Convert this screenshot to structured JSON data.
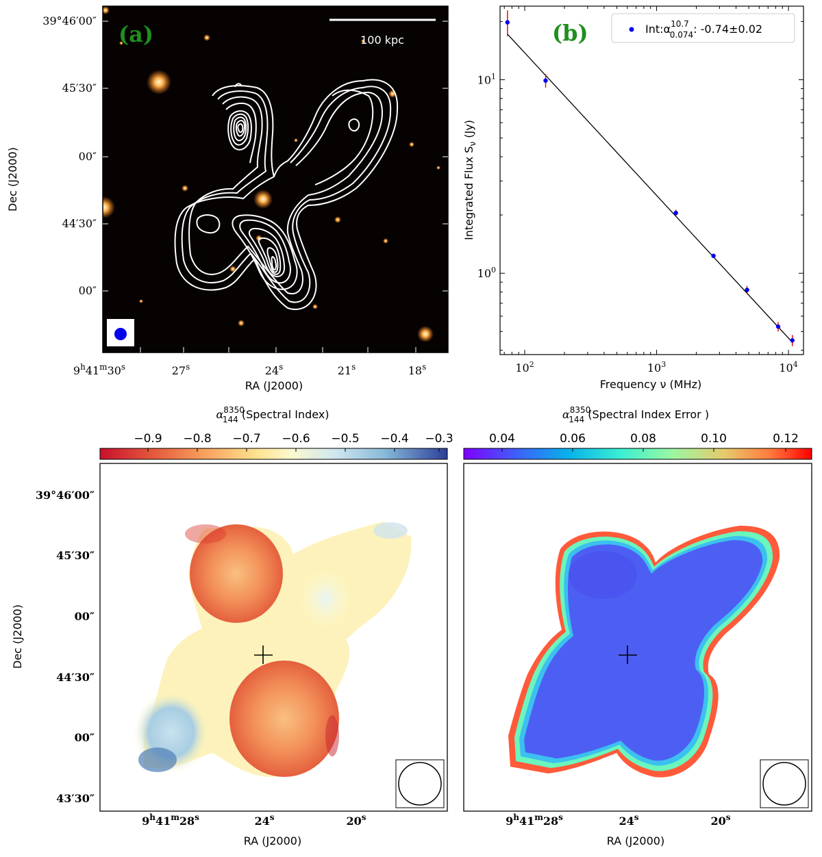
{
  "panels": {
    "a": {
      "panel_label": "(a)",
      "scalebar_label": "100 kpc",
      "ra_ticks": [
        {
          "h": "9",
          "m": "41",
          "s": "30"
        },
        {
          "s": "27"
        },
        {
          "s": "24"
        },
        {
          "s": "21"
        },
        {
          "s": "18"
        }
      ],
      "dec_ticks": [
        {
          "d": "39",
          "m": "46",
          "s": "00"
        },
        {
          "m": "45",
          "s": "30"
        },
        {
          "s": "00"
        },
        {
          "m": "44",
          "s": "30"
        },
        {
          "s": "00"
        }
      ],
      "xlabel": "RA (J2000)",
      "ylabel": "Dec (J2000)"
    },
    "b": {
      "panel_label": "(b)",
      "legend_label": "Int:α",
      "legend_sup": "10.7",
      "legend_sub": "0.074",
      "legend_value": ": -0.74±0.02",
      "xlabel": "Frequency ν (MHz)",
      "ylabel": "Integrated Flux S",
      "ylabel_sub": "ν",
      "ylabel_unit": " (Jy)",
      "xtick_labels": [
        "10",
        "10",
        "10"
      ],
      "xtick_exps": [
        "2",
        "3",
        "4"
      ],
      "ytick_labels": [
        "10",
        "10"
      ],
      "ytick_exps": [
        "1",
        "0"
      ]
    },
    "c": {
      "cbar_title_sym": "α",
      "cbar_sup": "8350",
      "cbar_sub": "144",
      "cbar_title": " (Spectral Index)",
      "cbar_ticks": [
        "−0.9",
        "−0.8",
        "−0.7",
        "−0.6",
        "−0.5",
        "−0.4",
        "−0.3"
      ],
      "ra_ticks": [
        {
          "h": "9",
          "m": "41",
          "s": "28"
        },
        {
          "s": "24"
        },
        {
          "s": "20"
        }
      ],
      "dec_ticks": [
        {
          "d": "39",
          "m": "46",
          "s": "00"
        },
        {
          "m": "45",
          "s": "30"
        },
        {
          "s": "00"
        },
        {
          "m": "44",
          "s": "30"
        },
        {
          "s": "00"
        },
        {
          "m": "43",
          "s": "30"
        }
      ],
      "xlabel": "RA (J2000)",
      "ylabel": "Dec (J2000)"
    },
    "d": {
      "cbar_title_sym": "α",
      "cbar_sup": "8350",
      "cbar_sub": "144",
      "cbar_title": " (Spectral Index Error )",
      "cbar_ticks": [
        "0.04",
        "0.06",
        "0.08",
        "0.10",
        "0.12"
      ],
      "ra_ticks": [
        {
          "h": "9",
          "m": "41",
          "s": "28"
        },
        {
          "s": "24"
        },
        {
          "s": "20"
        }
      ],
      "xlabel": "RA (J2000)"
    }
  },
  "chart_data": [
    {
      "type": "scatter",
      "panel": "b",
      "x_scale": "log",
      "y_scale": "log",
      "xlim": [
        65,
        13000
      ],
      "ylim": [
        0.38,
        24
      ],
      "series": [
        {
          "name": "Int:α 0.074–10.7: -0.74±0.02",
          "x": [
            74,
            144,
            1400,
            2700,
            4850,
            8350,
            10700
          ],
          "y": [
            19.8,
            9.9,
            2.05,
            1.23,
            0.82,
            0.53,
            0.45
          ],
          "yerr": [
            3.0,
            0.8,
            0.08,
            0.03,
            0.04,
            0.03,
            0.03
          ]
        }
      ],
      "fit": {
        "alpha": -0.74,
        "alpha_err": 0.02,
        "x": [
          74,
          10700
        ],
        "y": [
          17.2,
          0.44
        ]
      },
      "marker_color": "#0000ee",
      "errorbar_color": "#dd0000",
      "legend_position": "top-right"
    },
    {
      "type": "heatmap",
      "panel": "c",
      "colormap": "RdYlBu",
      "vlim": [
        -0.95,
        -0.26
      ]
    },
    {
      "type": "heatmap",
      "panel": "d",
      "colormap": "rainbow",
      "vlim": [
        0.026,
        0.125
      ]
    }
  ]
}
